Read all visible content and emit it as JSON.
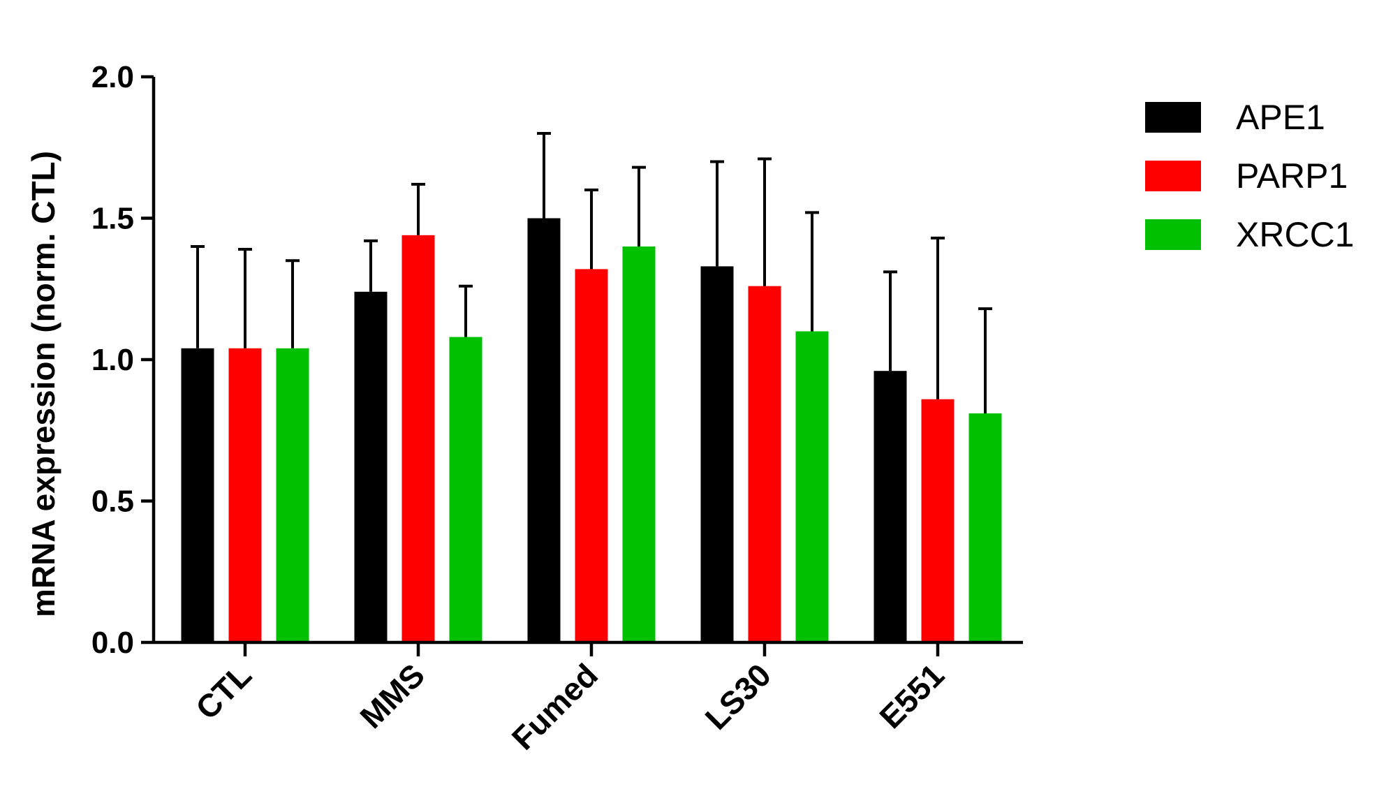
{
  "chart_data": {
    "type": "bar",
    "title": "",
    "xlabel": "",
    "ylabel": "mRNA expression (norm. CTL)",
    "ylim": [
      0,
      2.0
    ],
    "yticks": [
      "0.0",
      "0.5",
      "1.0",
      "1.5",
      "2.0"
    ],
    "categories": [
      "CTL",
      "MMS",
      "Fumed",
      "LS30",
      "E551"
    ],
    "legend_position": "top-right",
    "grid": false,
    "series": [
      {
        "name": "APE1",
        "color": "#000000",
        "values": [
          1.04,
          1.24,
          1.5,
          1.33,
          0.96
        ],
        "errors": [
          0.36,
          0.18,
          0.3,
          0.37,
          0.35
        ]
      },
      {
        "name": "PARP1",
        "color": "#ff0000",
        "values": [
          1.04,
          1.44,
          1.32,
          1.26,
          0.86
        ],
        "errors": [
          0.35,
          0.18,
          0.28,
          0.45,
          0.57
        ]
      },
      {
        "name": "XRCC1",
        "color": "#00c000",
        "values": [
          1.04,
          1.08,
          1.4,
          1.1,
          0.81
        ],
        "errors": [
          0.31,
          0.18,
          0.28,
          0.42,
          0.37
        ]
      }
    ]
  }
}
